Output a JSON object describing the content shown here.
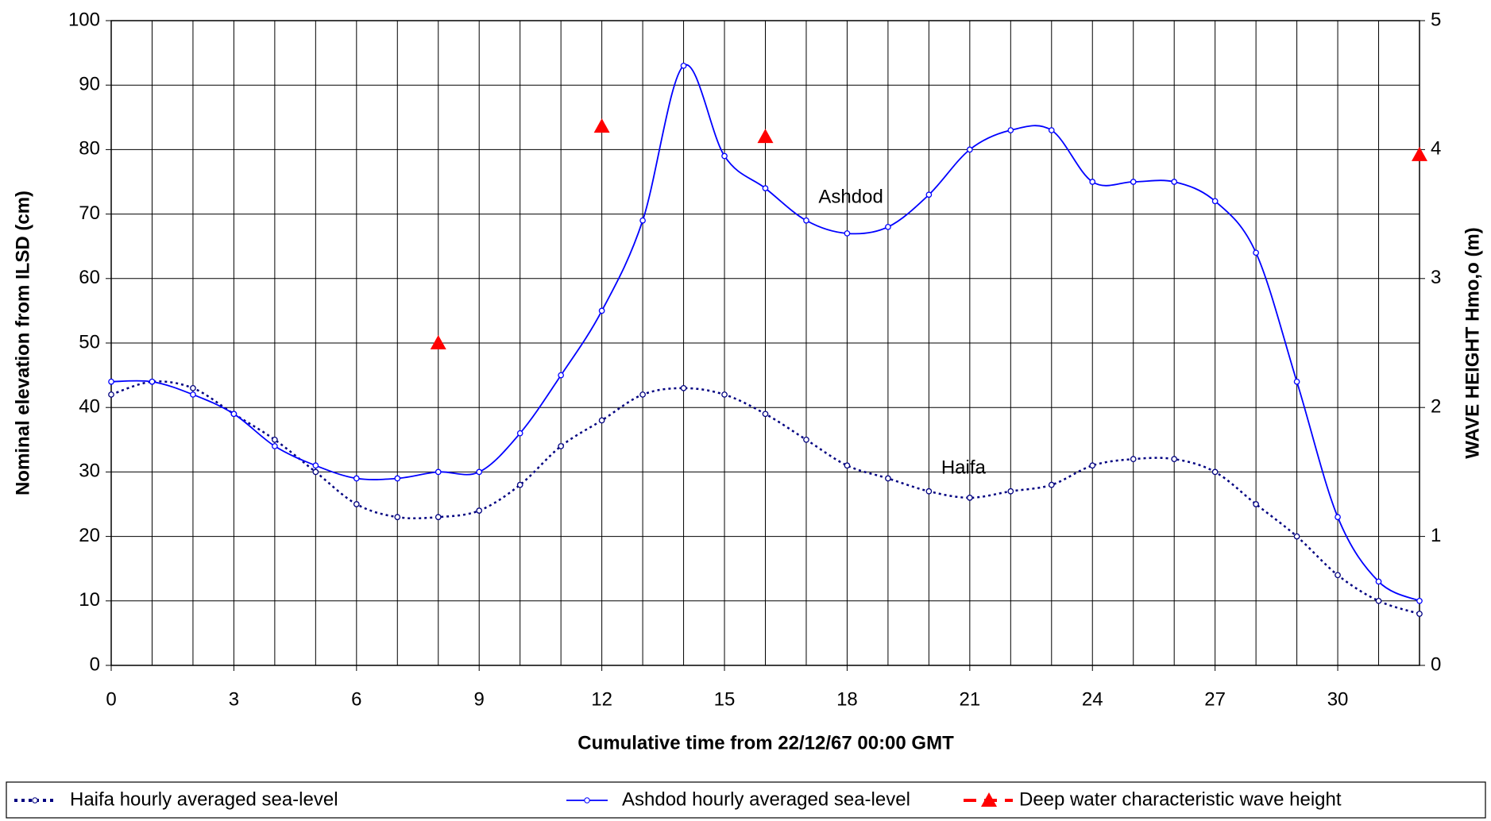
{
  "chart_data": {
    "type": "line",
    "xlabel": "Cumulative time from  22/12/67 00:00 GMT",
    "ylabel": "Nominal elevation from ILSD (cm)",
    "y2label": "WAVE HEIGHT Hmo,o (m)",
    "x": [
      0,
      1,
      2,
      3,
      4,
      5,
      6,
      7,
      8,
      9,
      10,
      11,
      12,
      13,
      14,
      15,
      16,
      17,
      18,
      19,
      20,
      21,
      22,
      23,
      24,
      25,
      26,
      27,
      28,
      29,
      30,
      31,
      32
    ],
    "xlim": [
      0,
      32
    ],
    "xticks": [
      0,
      3,
      6,
      9,
      12,
      15,
      18,
      21,
      24,
      27,
      30
    ],
    "ylim": [
      0,
      100
    ],
    "yticks": [
      0,
      10,
      20,
      30,
      40,
      50,
      60,
      70,
      80,
      90,
      100
    ],
    "y2lim": [
      0,
      5
    ],
    "y2ticks": [
      0,
      1,
      2,
      3,
      4,
      5
    ],
    "grid": true,
    "series": [
      {
        "name": "Haifa hourly averaged sea-level",
        "color": "#000080",
        "style": "dotted",
        "values": [
          42,
          44,
          43,
          39,
          35,
          30,
          25,
          23,
          23,
          24,
          28,
          34,
          38,
          42,
          43,
          42,
          39,
          35,
          31,
          29,
          27,
          26,
          27,
          28,
          31,
          32,
          32,
          30,
          25,
          20,
          14,
          10,
          8
        ]
      },
      {
        "name": "Ashdod hourly averaged sea-level",
        "color": "#0000ff",
        "style": "solid",
        "values": [
          44,
          44,
          42,
          39,
          34,
          31,
          29,
          29,
          30,
          30,
          36,
          45,
          55,
          69,
          93,
          79,
          74,
          69,
          67,
          68,
          73,
          80,
          83,
          83,
          75,
          75,
          75,
          72,
          64,
          44,
          23,
          13,
          10
        ]
      },
      {
        "name": "Deep water characteristic wave height",
        "color": "#ff0000",
        "style": "markers",
        "axis": "y2",
        "x": [
          8,
          12,
          16,
          32
        ],
        "values": [
          2.5,
          4.18,
          4.1,
          3.96
        ]
      }
    ],
    "annotations": [
      "Ashdod",
      "Haifa"
    ]
  }
}
